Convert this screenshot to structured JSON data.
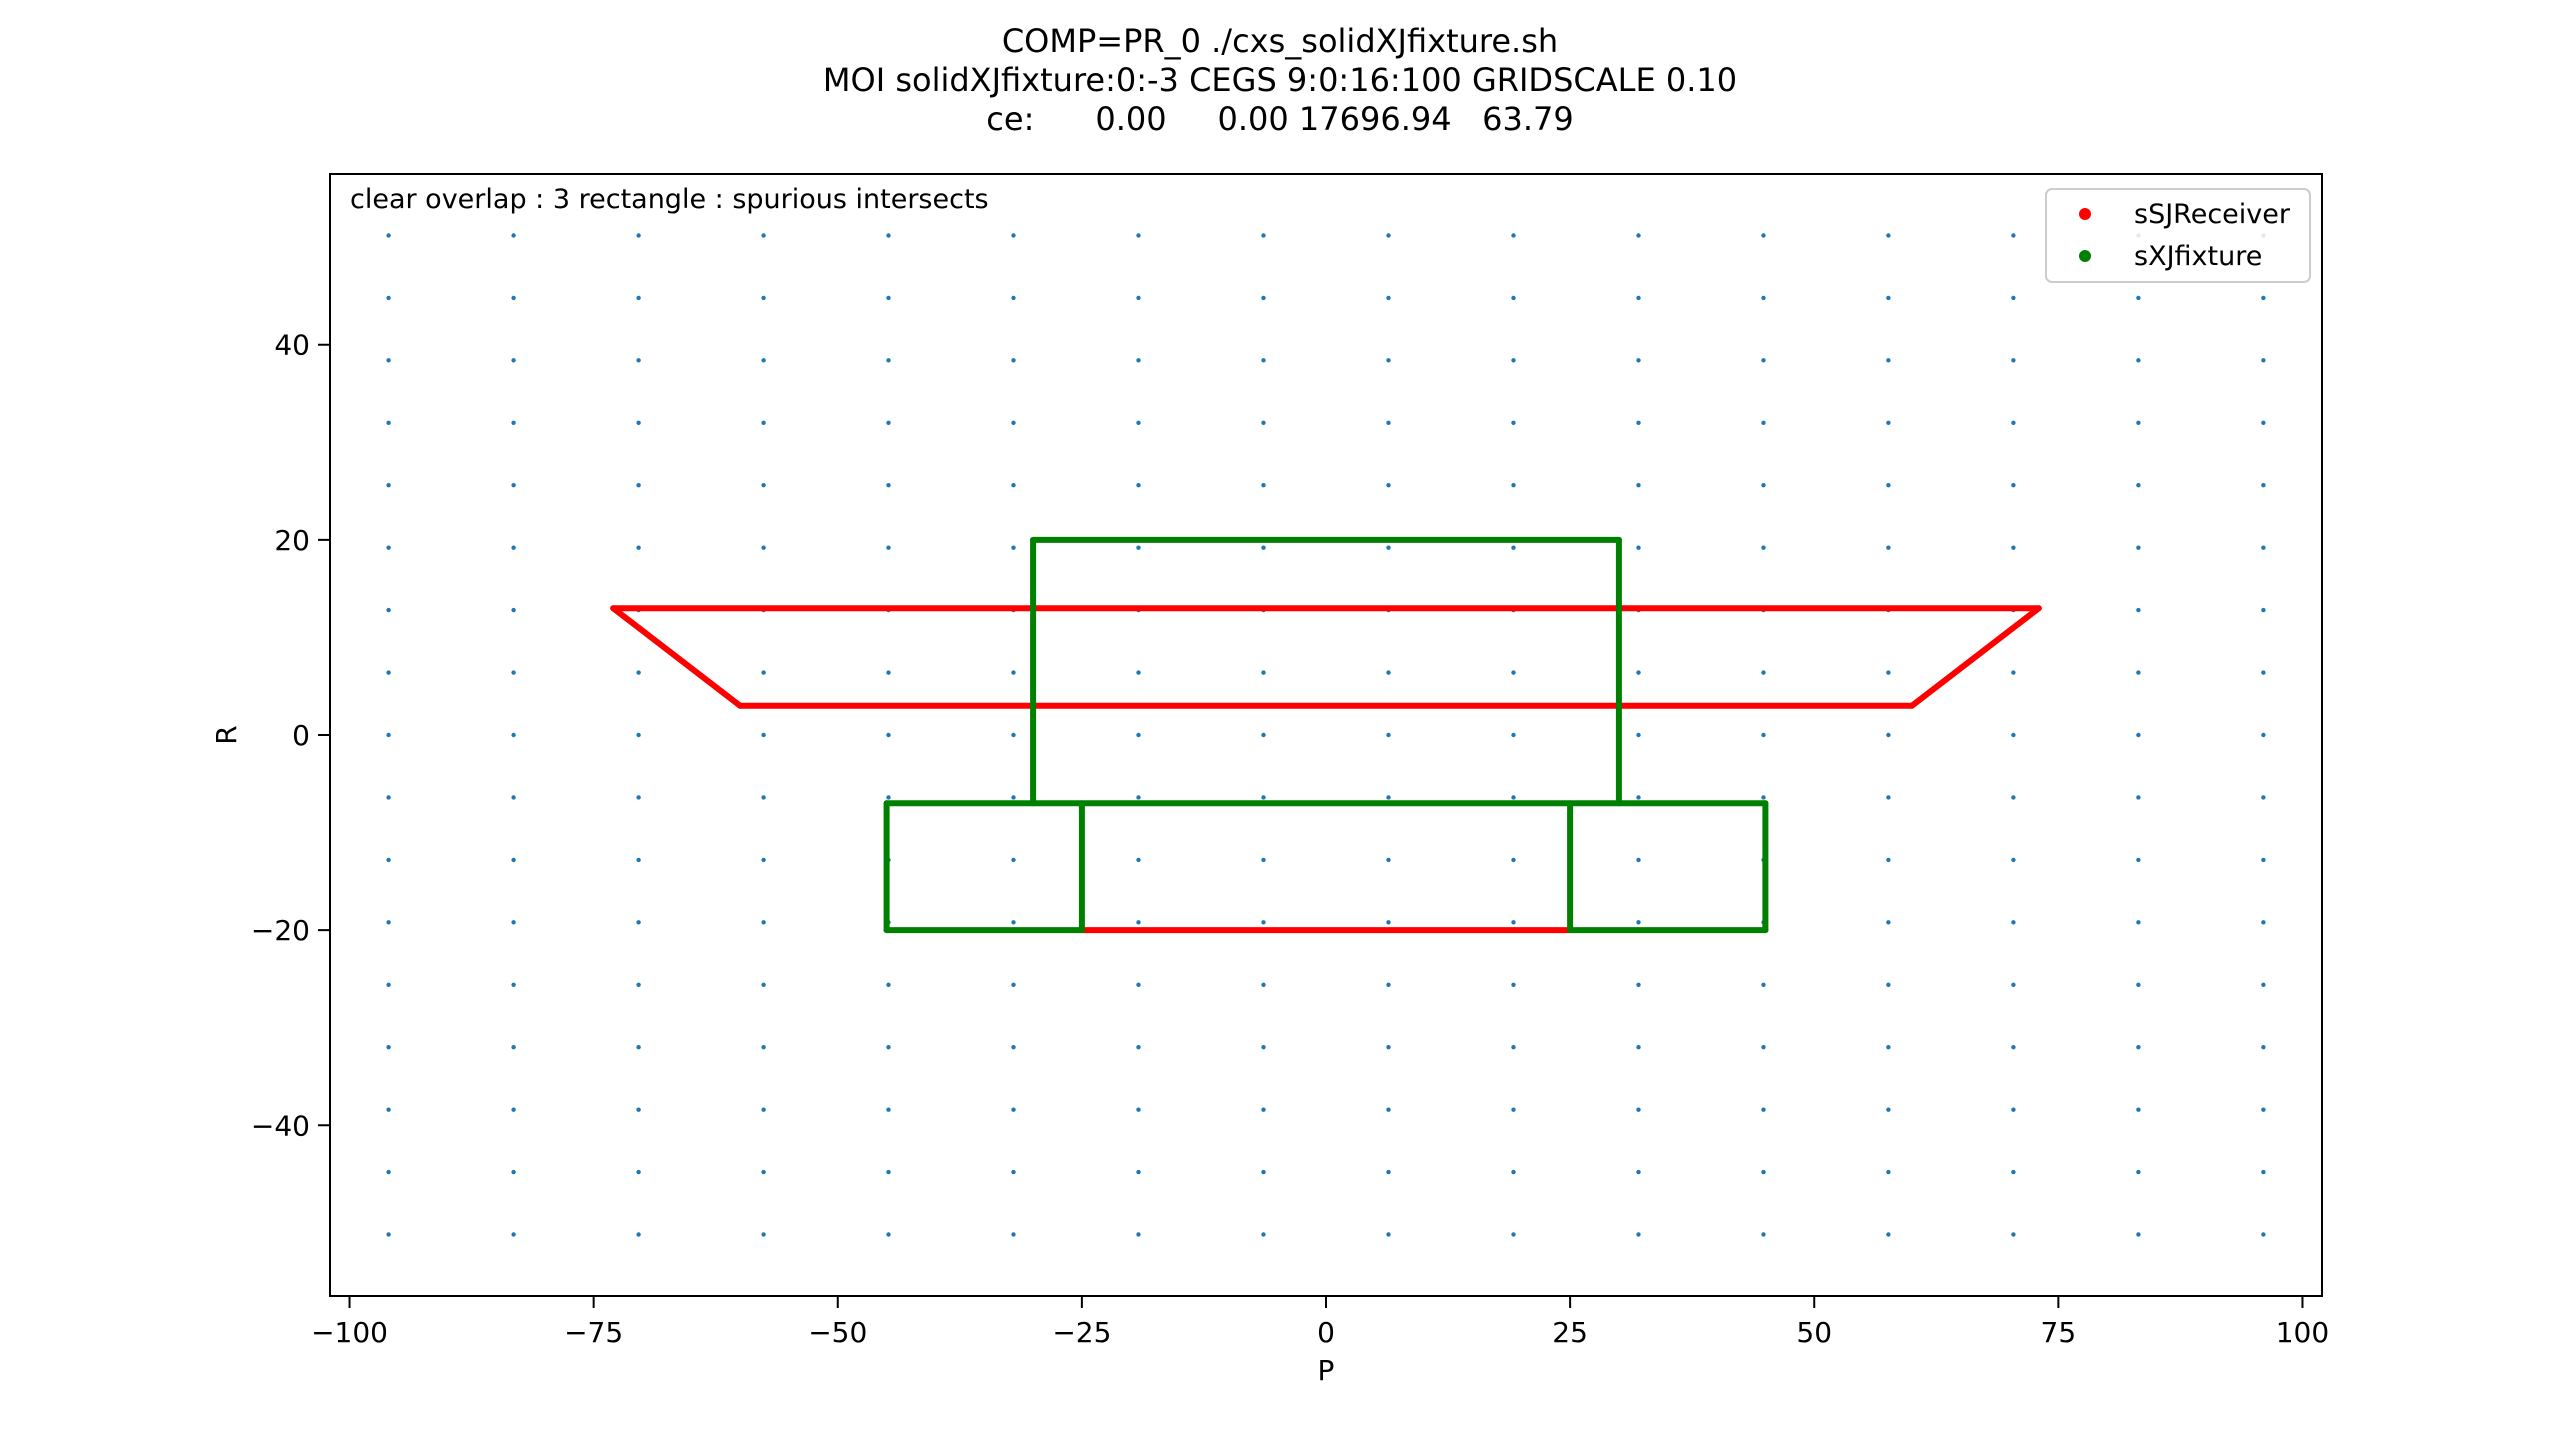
{
  "title_lines": [
    "COMP=PR_0 ./cxs_solidXJfixture.sh",
    "MOI solidXJfixture:0:-3 CEGS 9:0:16:100 GRIDSCALE 0.10",
    "ce:      0.00     0.00 17696.94   63.79"
  ],
  "chart_data": {
    "type": "scatter",
    "annotation": "clear overlap : 3 rectangle : spurious intersects",
    "xlabel": "P",
    "ylabel": "R",
    "xlim": [
      -102,
      102
    ],
    "ylim": [
      -57.5,
      57.5
    ],
    "xticks": [
      -100,
      -75,
      -50,
      -25,
      0,
      25,
      50,
      75,
      100
    ],
    "xtick_labels": [
      "−100",
      "−75",
      "−50",
      "−25",
      "0",
      "25",
      "50",
      "75",
      "100"
    ],
    "yticks": [
      -40,
      -20,
      0,
      20,
      40
    ],
    "ytick_labels": [
      "−40",
      "−20",
      "0",
      "20",
      "40"
    ],
    "legend_position": "top-right",
    "grid_points": {
      "color": "#1f77b4",
      "x_start": -96,
      "x_end": 96,
      "x_step": 12.8,
      "y_start": -51.2,
      "y_end": 51.2,
      "y_step": 6.4
    },
    "series": [
      {
        "name": "sSJReceiver",
        "color": "#ff0000",
        "segments": [
          [
            [
              -73,
              13
            ],
            [
              73,
              13
            ]
          ],
          [
            [
              -73,
              13
            ],
            [
              -60,
              3
            ]
          ],
          [
            [
              73,
              13
            ],
            [
              60,
              3
            ]
          ],
          [
            [
              -60,
              3
            ],
            [
              60,
              3
            ]
          ],
          [
            [
              -25,
              -20
            ],
            [
              25,
              -20
            ]
          ]
        ]
      },
      {
        "name": "sXJfixture",
        "color": "#008000",
        "segments": [
          [
            [
              -30,
              20
            ],
            [
              30,
              20
            ]
          ],
          [
            [
              -30,
              20
            ],
            [
              -30,
              -7
            ]
          ],
          [
            [
              30,
              20
            ],
            [
              30,
              -7
            ]
          ],
          [
            [
              -45,
              -7
            ],
            [
              45,
              -7
            ]
          ],
          [
            [
              -45,
              -7
            ],
            [
              -45,
              -20
            ]
          ],
          [
            [
              45,
              -7
            ],
            [
              45,
              -20
            ]
          ],
          [
            [
              -45,
              -20
            ],
            [
              -25,
              -20
            ]
          ],
          [
            [
              25,
              -20
            ],
            [
              45,
              -20
            ]
          ],
          [
            [
              -25,
              -7
            ],
            [
              -25,
              -20
            ]
          ],
          [
            [
              25,
              -7
            ],
            [
              25,
              -20
            ]
          ]
        ]
      }
    ]
  }
}
